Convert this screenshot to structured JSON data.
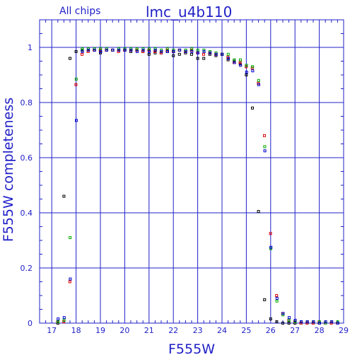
{
  "chart_data": {
    "type": "scatter",
    "title": "lmc_u4b110",
    "subtitle": "All chips",
    "xlabel": "F555W",
    "ylabel": "F555W completeness",
    "xlim": [
      16.5,
      29
    ],
    "ylim": [
      0,
      1.1
    ],
    "x_ticks": [
      17,
      18,
      19,
      20,
      21,
      22,
      23,
      24,
      25,
      26,
      27,
      28,
      29
    ],
    "y_ticks": [
      0,
      0.2,
      0.4,
      0.6,
      0.8,
      1
    ],
    "y_tick_labels": [
      "0",
      "0.2",
      "0.4",
      "0.6",
      "0.8",
      "1"
    ],
    "grid": true,
    "colors": {
      "axis": "#2020c8",
      "grid": "#2020c8",
      "background": "#ffffff"
    },
    "series": [
      {
        "color": "#000000",
        "points": [
          [
            17.25,
            0.0
          ],
          [
            17.5,
            0.46
          ],
          [
            17.75,
            0.96
          ],
          [
            18.0,
            0.985
          ],
          [
            18.25,
            0.99
          ],
          [
            18.5,
            0.99
          ],
          [
            18.75,
            0.99
          ],
          [
            19.0,
            0.98
          ],
          [
            19.25,
            0.99
          ],
          [
            19.5,
            0.99
          ],
          [
            19.75,
            0.99
          ],
          [
            20.0,
            0.99
          ],
          [
            20.25,
            0.985
          ],
          [
            20.5,
            0.99
          ],
          [
            20.75,
            0.985
          ],
          [
            21.0,
            0.975
          ],
          [
            21.25,
            0.98
          ],
          [
            21.5,
            0.98
          ],
          [
            21.75,
            0.985
          ],
          [
            22.0,
            0.97
          ],
          [
            22.25,
            0.975
          ],
          [
            22.5,
            0.98
          ],
          [
            22.75,
            0.975
          ],
          [
            23.0,
            0.96
          ],
          [
            23.25,
            0.96
          ],
          [
            23.5,
            0.975
          ],
          [
            23.75,
            0.97
          ],
          [
            24.0,
            0.975
          ],
          [
            24.25,
            0.955
          ],
          [
            24.5,
            0.95
          ],
          [
            24.75,
            0.94
          ],
          [
            25.0,
            0.9
          ],
          [
            25.25,
            0.78
          ],
          [
            25.5,
            0.405
          ],
          [
            25.75,
            0.085
          ],
          [
            26.0,
            0.015
          ],
          [
            26.25,
            0.005
          ],
          [
            26.5,
            0.0
          ],
          [
            26.75,
            0.0
          ],
          [
            27.0,
            0.0
          ],
          [
            27.25,
            0.0
          ],
          [
            27.5,
            0.0
          ],
          [
            27.75,
            0.0
          ],
          [
            28.0,
            0.0
          ]
        ]
      },
      {
        "color": "#dd0000",
        "points": [
          [
            17.25,
            0.005
          ],
          [
            17.5,
            0.005
          ],
          [
            17.75,
            0.15
          ],
          [
            18.0,
            0.865
          ],
          [
            18.25,
            0.975
          ],
          [
            18.5,
            0.985
          ],
          [
            18.75,
            0.99
          ],
          [
            19.0,
            0.99
          ],
          [
            19.25,
            0.99
          ],
          [
            19.5,
            0.99
          ],
          [
            19.75,
            0.985
          ],
          [
            20.0,
            0.99
          ],
          [
            20.25,
            0.99
          ],
          [
            20.5,
            0.99
          ],
          [
            20.75,
            0.985
          ],
          [
            21.0,
            0.99
          ],
          [
            21.25,
            0.985
          ],
          [
            21.5,
            0.98
          ],
          [
            21.75,
            0.99
          ],
          [
            22.0,
            0.985
          ],
          [
            22.25,
            0.99
          ],
          [
            22.5,
            0.985
          ],
          [
            22.75,
            0.99
          ],
          [
            23.0,
            0.98
          ],
          [
            23.25,
            0.975
          ],
          [
            23.5,
            0.98
          ],
          [
            23.75,
            0.975
          ],
          [
            24.0,
            0.975
          ],
          [
            24.25,
            0.965
          ],
          [
            24.5,
            0.945
          ],
          [
            24.75,
            0.945
          ],
          [
            25.0,
            0.93
          ],
          [
            25.25,
            0.925
          ],
          [
            25.5,
            0.87
          ],
          [
            25.75,
            0.68
          ],
          [
            26.0,
            0.325
          ],
          [
            26.25,
            0.1
          ],
          [
            26.5,
            0.035
          ],
          [
            26.75,
            0.01
          ],
          [
            27.0,
            0.005
          ],
          [
            27.25,
            0.0
          ],
          [
            27.5,
            0.0
          ],
          [
            27.75,
            0.0
          ],
          [
            28.0,
            0.005
          ],
          [
            28.25,
            0.0
          ],
          [
            28.5,
            0.0
          ],
          [
            28.75,
            0.0
          ]
        ]
      },
      {
        "color": "#00aa00",
        "points": [
          [
            17.25,
            0.005
          ],
          [
            17.5,
            0.01
          ],
          [
            17.75,
            0.31
          ],
          [
            18.0,
            0.885
          ],
          [
            18.25,
            0.995
          ],
          [
            18.5,
            0.995
          ],
          [
            18.75,
            0.995
          ],
          [
            19.0,
            0.995
          ],
          [
            19.25,
            0.995
          ],
          [
            19.5,
            0.99
          ],
          [
            19.75,
            0.995
          ],
          [
            20.0,
            0.995
          ],
          [
            20.25,
            0.995
          ],
          [
            20.5,
            0.995
          ],
          [
            20.75,
            0.995
          ],
          [
            21.0,
            0.995
          ],
          [
            21.25,
            0.995
          ],
          [
            21.5,
            0.99
          ],
          [
            21.75,
            0.995
          ],
          [
            22.0,
            0.99
          ],
          [
            22.25,
            0.99
          ],
          [
            22.5,
            0.99
          ],
          [
            22.75,
            0.995
          ],
          [
            23.0,
            0.99
          ],
          [
            23.25,
            0.99
          ],
          [
            23.5,
            0.985
          ],
          [
            23.75,
            0.98
          ],
          [
            24.0,
            0.975
          ],
          [
            24.25,
            0.975
          ],
          [
            24.5,
            0.955
          ],
          [
            24.75,
            0.955
          ],
          [
            25.0,
            0.935
          ],
          [
            25.25,
            0.93
          ],
          [
            25.5,
            0.88
          ],
          [
            25.75,
            0.64
          ],
          [
            26.0,
            0.27
          ],
          [
            26.25,
            0.08
          ],
          [
            26.5,
            0.03
          ],
          [
            26.75,
            0.01
          ],
          [
            27.0,
            0.005
          ],
          [
            27.25,
            0.005
          ],
          [
            27.5,
            0.005
          ],
          [
            27.75,
            0.005
          ],
          [
            28.0,
            0.005
          ],
          [
            28.25,
            0.0
          ],
          [
            28.5,
            0.005
          ],
          [
            28.75,
            0.005
          ]
        ]
      },
      {
        "color": "#0000cc",
        "points": [
          [
            17.25,
            0.015
          ],
          [
            17.5,
            0.02
          ],
          [
            17.75,
            0.16
          ],
          [
            18.0,
            0.735
          ],
          [
            18.25,
            0.985
          ],
          [
            18.5,
            0.99
          ],
          [
            18.75,
            0.99
          ],
          [
            19.0,
            0.985
          ],
          [
            19.25,
            0.99
          ],
          [
            19.5,
            0.99
          ],
          [
            19.75,
            0.99
          ],
          [
            20.0,
            0.99
          ],
          [
            20.25,
            0.99
          ],
          [
            20.5,
            0.985
          ],
          [
            20.75,
            0.99
          ],
          [
            21.0,
            0.985
          ],
          [
            21.25,
            0.99
          ],
          [
            21.5,
            0.985
          ],
          [
            21.75,
            0.985
          ],
          [
            22.0,
            0.985
          ],
          [
            22.25,
            0.99
          ],
          [
            22.5,
            0.985
          ],
          [
            22.75,
            0.985
          ],
          [
            23.0,
            0.98
          ],
          [
            23.25,
            0.985
          ],
          [
            23.5,
            0.98
          ],
          [
            23.75,
            0.975
          ],
          [
            24.0,
            0.975
          ],
          [
            24.25,
            0.96
          ],
          [
            24.5,
            0.945
          ],
          [
            24.75,
            0.935
          ],
          [
            25.0,
            0.91
          ],
          [
            25.25,
            0.915
          ],
          [
            25.5,
            0.865
          ],
          [
            25.75,
            0.625
          ],
          [
            26.0,
            0.275
          ],
          [
            26.25,
            0.09
          ],
          [
            26.5,
            0.035
          ],
          [
            26.75,
            0.02
          ],
          [
            27.0,
            0.01
          ],
          [
            27.25,
            0.005
          ],
          [
            27.5,
            0.005
          ],
          [
            27.75,
            0.005
          ],
          [
            28.0,
            0.0
          ],
          [
            28.25,
            0.005
          ],
          [
            28.5,
            0.005
          ],
          [
            28.75,
            0.0
          ]
        ]
      }
    ]
  }
}
